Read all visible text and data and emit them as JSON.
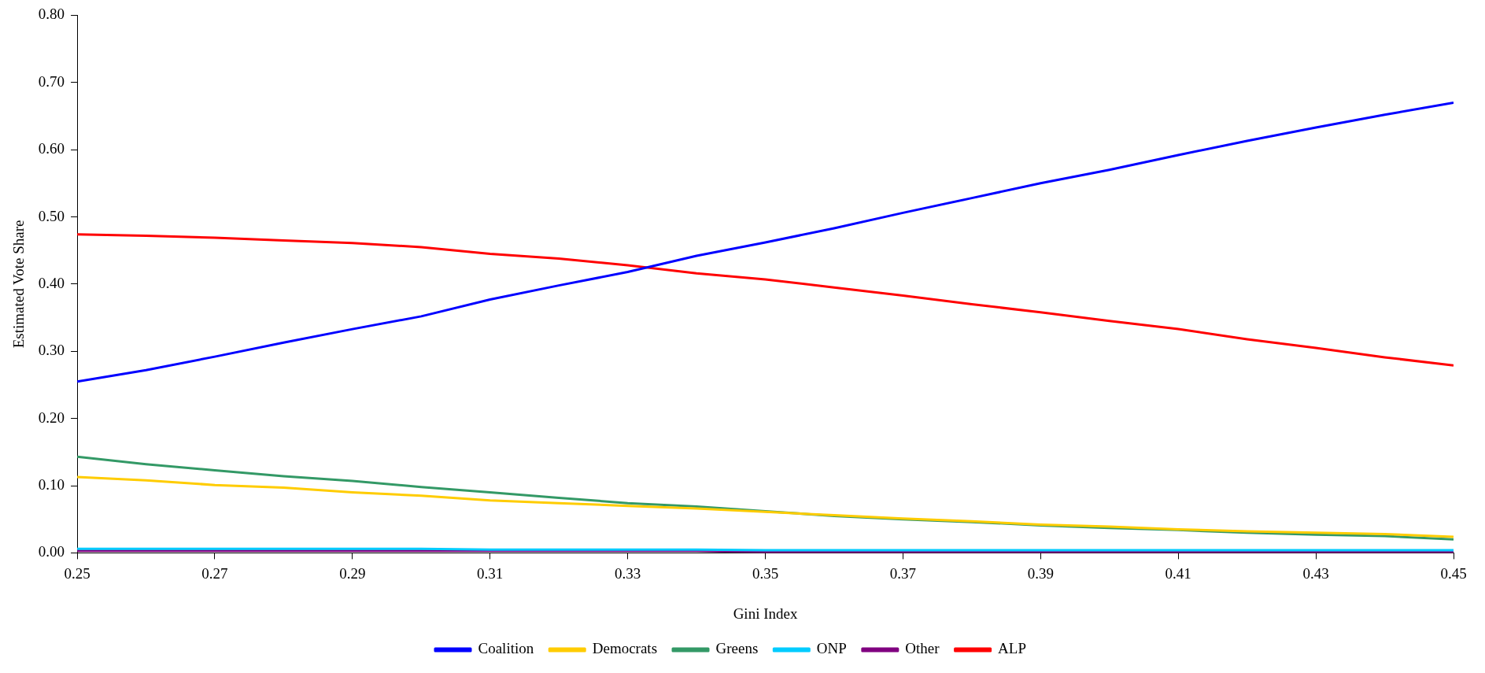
{
  "chart_data": {
    "type": "line",
    "xlabel": "Gini Index",
    "ylabel": "Estimated Vote Share",
    "x": [
      0.25,
      0.26,
      0.27,
      0.28,
      0.29,
      0.3,
      0.31,
      0.32,
      0.33,
      0.34,
      0.35,
      0.36,
      0.37,
      0.38,
      0.39,
      0.4,
      0.41,
      0.42,
      0.43,
      0.44,
      0.45
    ],
    "series": [
      {
        "name": "Coalition",
        "color": "#0000ff",
        "values": [
          0.255,
          0.272,
          0.292,
          0.313,
          0.333,
          0.352,
          0.377,
          0.398,
          0.418,
          0.442,
          0.462,
          0.483,
          0.506,
          0.528,
          0.55,
          0.57,
          0.592,
          0.613,
          0.633,
          0.652,
          0.67
        ]
      },
      {
        "name": "Democrats",
        "color": "#ffcc00",
        "values": [
          0.113,
          0.108,
          0.101,
          0.097,
          0.09,
          0.085,
          0.078,
          0.074,
          0.07,
          0.066,
          0.061,
          0.056,
          0.051,
          0.047,
          0.042,
          0.039,
          0.035,
          0.032,
          0.03,
          0.028,
          0.024
        ]
      },
      {
        "name": "Greens",
        "color": "#339966",
        "values": [
          0.143,
          0.132,
          0.123,
          0.114,
          0.107,
          0.098,
          0.09,
          0.082,
          0.074,
          0.069,
          0.062,
          0.055,
          0.05,
          0.046,
          0.041,
          0.037,
          0.034,
          0.03,
          0.027,
          0.025,
          0.02
        ]
      },
      {
        "name": "ONP",
        "color": "#00ccff",
        "values": [
          0.006,
          0.006,
          0.006,
          0.006,
          0.006,
          0.006,
          0.005,
          0.005,
          0.005,
          0.005,
          0.004,
          0.004,
          0.004,
          0.004,
          0.004,
          0.004,
          0.004,
          0.004,
          0.004,
          0.004,
          0.004
        ]
      },
      {
        "name": "Other",
        "color": "#800080",
        "values": [
          0.003,
          0.003,
          0.003,
          0.003,
          0.003,
          0.003,
          0.003,
          0.003,
          0.003,
          0.003,
          0.001,
          0.001,
          0.001,
          0.001,
          0.001,
          0.001,
          0.001,
          0.001,
          0.001,
          0.001,
          0.001
        ]
      },
      {
        "name": "ALP",
        "color": "#ff0000",
        "values": [
          0.474,
          0.472,
          0.469,
          0.465,
          0.461,
          0.455,
          0.445,
          0.438,
          0.428,
          0.416,
          0.407,
          0.395,
          0.383,
          0.37,
          0.358,
          0.345,
          0.333,
          0.318,
          0.305,
          0.291,
          0.279
        ]
      }
    ],
    "xlim": [
      0.25,
      0.45
    ],
    "xticks": [
      0.25,
      0.27,
      0.29,
      0.31,
      0.33,
      0.35,
      0.37,
      0.39,
      0.41,
      0.43,
      0.45
    ],
    "ylim": [
      0,
      0.8
    ],
    "yticks": [
      {
        "value": 0,
        "label": "0.00"
      },
      {
        "value": 0.1,
        "label": "0.10"
      },
      {
        "value": 0.2,
        "label": "0.20"
      },
      {
        "value": 0.3,
        "label": "0.30"
      },
      {
        "value": 0.4,
        "label": "0.40"
      },
      {
        "value": 0.5,
        "label": "0.50"
      },
      {
        "value": 0.6,
        "label": "0.60"
      },
      {
        "value": 0.7,
        "label": "0.70"
      },
      {
        "value": 0.8,
        "label": "0.80"
      }
    ],
    "grid": false,
    "legend": "bottom",
    "marker": "none",
    "line_style": "solid"
  }
}
